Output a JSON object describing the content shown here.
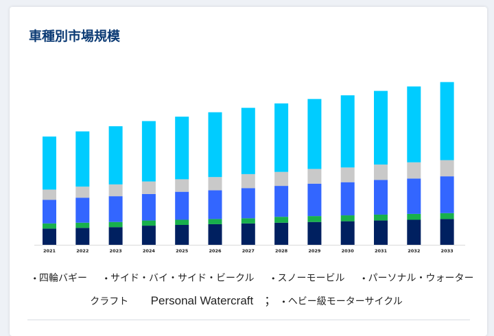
{
  "page": {
    "title": "車種別市場規模"
  },
  "chart_data": {
    "type": "bar",
    "stacked": true,
    "title": "車種別市場規模",
    "xlabel": "",
    "ylabel": "",
    "categories": [
      "2021",
      "2022",
      "2023",
      "2024",
      "2025",
      "2026",
      "2027",
      "2028",
      "2029",
      "2030",
      "2031",
      "2032",
      "2033"
    ],
    "series": [
      {
        "name": "四輪バギー",
        "color": "#002060",
        "values": [
          22,
          23,
          24,
          26,
          27,
          28,
          29,
          30,
          31,
          32,
          33,
          34,
          35
        ]
      },
      {
        "name": "サイド・バイ・サイド・ビークル",
        "color": "#18b04c",
        "values": [
          7,
          7,
          7,
          7,
          7,
          7,
          7,
          8,
          8,
          8,
          8,
          8,
          8
        ]
      },
      {
        "name": "スノーモービル",
        "color": "#3366ff",
        "values": [
          32,
          34,
          35,
          36,
          38,
          39,
          41,
          42,
          44,
          45,
          47,
          48,
          50
        ]
      },
      {
        "name": "パーソナル・ウォータークラフト",
        "color": "#c9c9c9",
        "values": [
          14,
          15,
          16,
          17,
          17,
          18,
          19,
          19,
          20,
          20,
          21,
          22,
          22
        ]
      },
      {
        "name": "ヘビー級モーターサイクル",
        "color": "#00ccff",
        "values": [
          72,
          75,
          79,
          82,
          85,
          88,
          90,
          93,
          95,
          98,
          100,
          103,
          106
        ]
      }
    ],
    "ylim": [
      0,
      230
    ],
    "grid": false,
    "legend_position": "bottom"
  },
  "legend": {
    "items": [
      {
        "label": "四輪バギー"
      },
      {
        "label": "サイド・バイ・サイド・ビークル"
      },
      {
        "label": "スノーモービル"
      },
      {
        "label": "パーソナル・ウォータークラフト"
      }
    ],
    "extra_text": "Personal Watercraft",
    "separator": "；",
    "last_item": {
      "label": "ヘビー級モーターサイクル"
    },
    "bullet": "•"
  }
}
